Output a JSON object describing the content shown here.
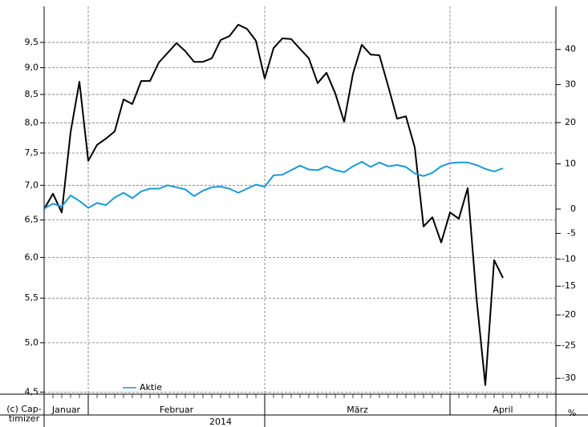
{
  "chart_data": {
    "type": "line",
    "months": [
      "Januar",
      "Februar",
      "März",
      "April"
    ],
    "month_slots": [
      5,
      20,
      21,
      12
    ],
    "year": "2014",
    "y2_unit": "%",
    "copyright": [
      "(c) Cap-",
      "timizer"
    ],
    "ylim": [
      4.48,
      10.26
    ],
    "yscale": "log",
    "yticks": [
      {
        "value": 4.5,
        "label": "4,5"
      },
      {
        "value": 5.0,
        "label": "5,0"
      },
      {
        "value": 5.5,
        "label": "5,5"
      },
      {
        "value": 6.0,
        "label": "6,0"
      },
      {
        "value": 6.5,
        "label": "6,5"
      },
      {
        "value": 7.0,
        "label": "7,0"
      },
      {
        "value": 7.5,
        "label": "7,5"
      },
      {
        "value": 8.0,
        "label": "8,0"
      },
      {
        "value": 8.5,
        "label": "8,5"
      },
      {
        "value": 9.0,
        "label": "9,0"
      },
      {
        "value": 9.5,
        "label": "9,5"
      }
    ],
    "y2lim": [
      -32.3,
      53.3
    ],
    "y2scale": "log",
    "y2ticks": [
      -30,
      -25,
      -20,
      -15,
      -10,
      -5,
      0,
      10,
      20,
      30,
      40
    ],
    "grid": true,
    "legend": "bottom-left",
    "series": [
      {
        "color": "#000000",
        "axis": "y2",
        "values": [
          0,
          3.3,
          -0.7,
          17.6,
          30.8,
          10.7,
          14.5,
          16.0,
          17.8,
          26.0,
          24.8,
          31.0,
          31.0,
          36.2,
          39.0,
          41.9,
          39.5,
          36.4,
          36.4,
          37.4,
          42.8,
          44.0,
          47.5,
          46.2,
          42.6,
          31.7,
          40.4,
          43.3,
          43.1,
          40.2,
          37.4,
          30.4,
          33.3,
          27.6,
          20.2,
          33.0,
          41.4,
          38.5,
          38.3,
          29.5,
          21.0,
          21.6,
          13.9,
          -3.6,
          -1.7,
          -6.8,
          -0.7,
          -2.0,
          4.5,
          -17.1,
          -31.0,
          -10.2,
          -13.5
        ]
      },
      {
        "name": "Aktie",
        "color": "#1a9ad6",
        "values": [
          6.66,
          6.73,
          6.69,
          6.85,
          6.77,
          6.67,
          6.74,
          6.71,
          6.82,
          6.89,
          6.81,
          6.91,
          6.95,
          6.95,
          7.0,
          6.97,
          6.94,
          6.84,
          6.92,
          6.97,
          6.98,
          6.95,
          6.89,
          6.95,
          7.01,
          6.98,
          7.15,
          7.16,
          7.23,
          7.3,
          7.24,
          7.23,
          7.29,
          7.23,
          7.2,
          7.29,
          7.36,
          7.28,
          7.35,
          7.29,
          7.31,
          7.28,
          7.18,
          7.14,
          7.19,
          7.29,
          7.34,
          7.35,
          7.35,
          7.31,
          7.25,
          7.21,
          7.26
        ]
      }
    ]
  }
}
